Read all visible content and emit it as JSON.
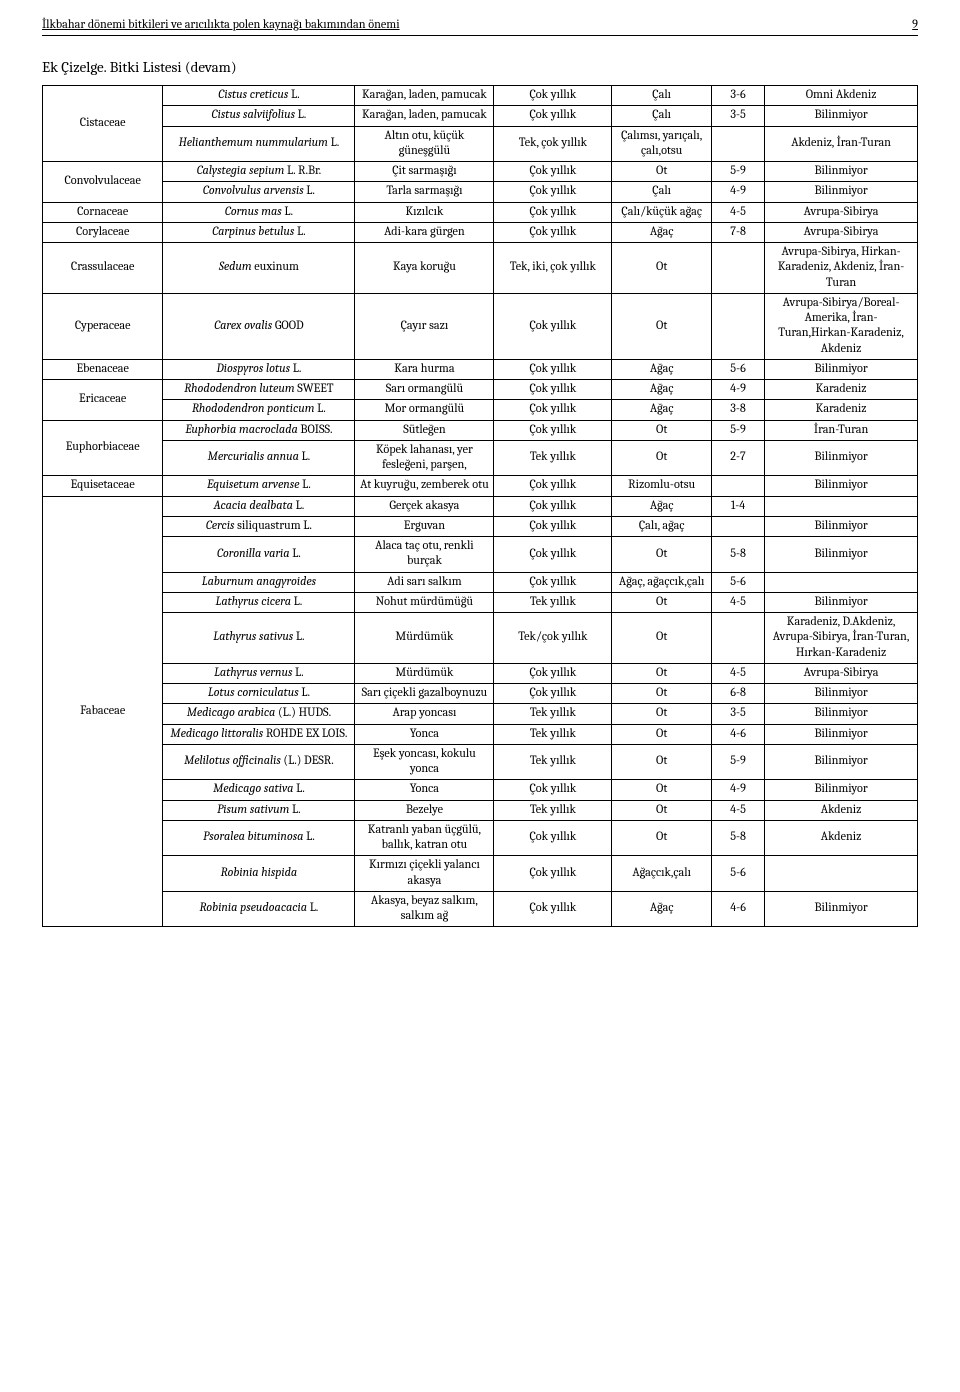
{
  "header": {
    "title": "İlkbahar dönemi bitkileri ve arıcılıkta polen kaynağı bakımından önemi",
    "pagenum": "9"
  },
  "section_title": "Ek Çizelge. Bitki Listesi (devam)",
  "families": [
    {
      "name": "Cistaceae",
      "rows": [
        {
          "species_html": "<span class='italic'>Cistus creticus</span> L.",
          "common": "Karağan, laden, pamucak",
          "life": "Çok yıllık",
          "habit": "Çalı",
          "period": "3-6",
          "region": "Omni Akdeniz"
        },
        {
          "species_html": "<span class='italic'>Cistus salviifolius</span> L.",
          "common": "Karağan, laden, pamucak",
          "life": "Çok yıllık",
          "habit": "Çalı",
          "period": "3-5",
          "region": "Bilinmiyor"
        },
        {
          "species_html": "<span class='italic'>Helianthemum nummularium</span> L.",
          "common": "Altın otu, küçük güneşgülü",
          "life": "Tek, çok yıllık",
          "habit": "Çalımsı, yarıçalı, çalı,otsu",
          "period": "",
          "region": "Akdeniz, İran-Turan"
        }
      ]
    },
    {
      "name": "Convolvulaceae",
      "rows": [
        {
          "species_html": "<span class='italic'>Calystegia sepium</span> L. R.Br.",
          "common": "Çit sarmaşığı",
          "life": "Çok yıllık",
          "habit": "Ot",
          "period": "5-9",
          "region": "Bilinmiyor"
        },
        {
          "species_html": "<span class='italic'>Convolvulus arvensis</span> L.",
          "common": "Tarla sarmaşığı",
          "life": "Çok yıllık",
          "habit": "Çalı",
          "period": "4-9",
          "region": "Bilinmiyor"
        }
      ]
    },
    {
      "name": "Cornaceae",
      "rows": [
        {
          "species_html": "<span class='italic'>Cornus mas</span> L.",
          "common": "Kızılcık",
          "life": "Çok yıllık",
          "habit": "Çalı/küçük ağaç",
          "period": "4-5",
          "region": "Avrupa-Sibirya"
        }
      ]
    },
    {
      "name": "Corylaceae",
      "rows": [
        {
          "species_html": "<span class='italic'>Carpinus betulus</span> L.",
          "common": "Adi-kara gürgen",
          "life": "Çok yıllık",
          "habit": "Ağaç",
          "period": "7-8",
          "region": "Avrupa-Sibirya"
        }
      ]
    },
    {
      "name": "Crassulaceae",
      "rows": [
        {
          "species_html": "<span class='italic'>Sedum</span> euxinum",
          "common": "Kaya koruğu",
          "life": "Tek, iki, çok yıllık",
          "habit": "Ot",
          "period": "",
          "region": "Avrupa-Sibirya, Hirkan-Karadeniz, Akdeniz, İran-Turan"
        }
      ]
    },
    {
      "name": "Cyperaceae",
      "rows": [
        {
          "species_html": "<span class='italic'>Carex ovalis</span> GOOD",
          "common": "Çayır sazı",
          "life": "Çok yıllık",
          "habit": "Ot",
          "period": "",
          "region": "Avrupa-Sibirya/Boreal-Amerika, İran-Turan,Hirkan-Karadeniz, Akdeniz"
        }
      ]
    },
    {
      "name": "Ebenaceae",
      "rows": [
        {
          "species_html": "<span class='italic'>Diospyros lotus</span> L.",
          "common": "Kara hurma",
          "life": "Çok yıllık",
          "habit": "Ağaç",
          "period": "5-6",
          "region": "Bilinmiyor"
        }
      ]
    },
    {
      "name": "Ericaceae",
      "rows": [
        {
          "species_html": "<span class='italic'>Rhododendron luteum</span> SWEET",
          "common": "Sarı ormangülü",
          "life": "Çok yıllık",
          "habit": "Ağaç",
          "period": "4-9",
          "region": "Karadeniz"
        },
        {
          "species_html": "<span class='italic'>Rhododendron ponticum</span> L.",
          "common": "Mor ormangülü",
          "life": "Çok yıllık",
          "habit": "Ağaç",
          "period": "3-8",
          "region": "Karadeniz"
        }
      ]
    },
    {
      "name": "Euphorbiaceae",
      "rows": [
        {
          "species_html": "<span class='italic'>Euphorbia macroclada</span> BOISS.",
          "common": "Sütleğen",
          "life": "Çok yıllık",
          "habit": "Ot",
          "period": "5-9",
          "region": "İran-Turan"
        },
        {
          "species_html": "<span class='italic'>Mercurialis annua</span> L.",
          "common": "Köpek lahanası, yer fesleğeni, parşen,",
          "life": "Tek yıllık",
          "habit": "Ot",
          "period": "2-7",
          "region": "Bilinmiyor"
        }
      ]
    },
    {
      "name": "Equisetaceae",
      "rows": [
        {
          "species_html": "<span class='italic'>Equisetum arvense</span> L.",
          "common": "At kuyruğu, zemberek otu",
          "life": "Çok yıllık",
          "habit": "Rizomlu-otsu",
          "period": "",
          "region": "Bilinmiyor"
        }
      ]
    },
    {
      "name": "Fabaceae",
      "rows": [
        {
          "species_html": "<span class='italic'>Acacia dealbata</span> L.",
          "common": "Gerçek akasya",
          "life": "Çok yıllık",
          "habit": "Ağaç",
          "period": "1-4",
          "region": ""
        },
        {
          "species_html": "<span class='italic'>Cercis</span> siliquastrum L.",
          "common": "Erguvan",
          "life": "Çok yıllık",
          "habit": "Çalı, ağaç",
          "period": "",
          "region": "Bilinmiyor"
        },
        {
          "species_html": "<span class='italic'>Coronilla varia</span> L.",
          "common": "Alaca taç otu, renkli burçak",
          "life": "Çok yıllık",
          "habit": "Ot",
          "period": "5-8",
          "region": "Bilinmiyor"
        },
        {
          "species_html": "<span class='italic'>Laburnum anagyroides</span>",
          "common": "Adi sarı salkım",
          "life": "Çok yıllık",
          "habit": "Ağaç, ağaçcık,çalı",
          "period": "5-6",
          "region": ""
        },
        {
          "species_html": "<span class='italic'>Lathyrus cicera</span> L.",
          "common": "Nohut mürdümüğü",
          "life": "Tek yıllık",
          "habit": "Ot",
          "period": "4-5",
          "region": "Bilinmiyor"
        },
        {
          "species_html": "<span class='italic'>Lathyrus sativus</span> L.",
          "common": "Mürdümük",
          "life": "Tek/çok yıllık",
          "habit": "Ot",
          "period": "",
          "region": "Karadeniz, D.Akdeniz, Avrupa-Sibirya, İran-Turan, Hırkan-Karadeniz"
        },
        {
          "species_html": "<span class='italic'>Lathyrus vernus</span> L.",
          "common": "Mürdümük",
          "life": "Çok yıllık",
          "habit": "Ot",
          "period": "4-5",
          "region": "Avrupa-Sibirya"
        },
        {
          "species_html": "<span class='italic'>Lotus corniculatus</span> L.",
          "common": "Sarı çiçekli gazalboynuzu",
          "life": "Çok yıllık",
          "habit": "Ot",
          "period": "6-8",
          "region": "Bilinmiyor"
        },
        {
          "species_html": "<span class='italic'>Medicago arabica</span> (L.) HUDS.",
          "common": "Arap yoncası",
          "life": "Tek yıllık",
          "habit": "Ot",
          "period": "3-5",
          "region": "Bilinmiyor"
        },
        {
          "species_html": "<span class='italic'>Medicago littoralis</span> ROHDE EX LOIS.",
          "common": "Yonca",
          "life": "Tek yıllık",
          "habit": "Ot",
          "period": "4-6",
          "region": "Bilinmiyor"
        },
        {
          "species_html": "<span class='italic'>Melilotus officinalis</span> (L.) DESR.",
          "common": "Eşek yoncası, kokulu yonca",
          "life": "Tek yıllık",
          "habit": "Ot",
          "period": "5-9",
          "region": "Bilinmiyor"
        },
        {
          "species_html": "<span class='italic'>Medicago sativa</span> L.",
          "common": "Yonca",
          "life": "Çok yıllık",
          "habit": "Ot",
          "period": "4-9",
          "region": "Bilinmiyor"
        },
        {
          "species_html": "<span class='italic'>Pisum sativum</span> L.",
          "common": "Bezelye",
          "life": "Tek yıllık",
          "habit": "Ot",
          "period": "4-5",
          "region": "Akdeniz"
        },
        {
          "species_html": "<span class='italic'>Psoralea bituminosa</span> L.",
          "common": "Katranlı yaban üçgülü, ballık, katran otu",
          "life": "Çok yıllık",
          "habit": "Ot",
          "period": "5-8",
          "region": "Akdeniz"
        },
        {
          "species_html": "<span class='italic'>Robinia hispida</span>",
          "common": "Kırmızı çiçekli yalancı akasya",
          "life": "Çok yıllık",
          "habit": "Ağaçcık,çalı",
          "period": "5-6",
          "region": ""
        },
        {
          "species_html": "<span class='italic'>Robinia pseudoacacia</span> L.",
          "common": "Akasya, beyaz salkım, salkım ağ",
          "life": "Çok yıllık",
          "habit": "Ağaç",
          "period": "4-6",
          "region": "Bilinmiyor"
        }
      ]
    }
  ]
}
